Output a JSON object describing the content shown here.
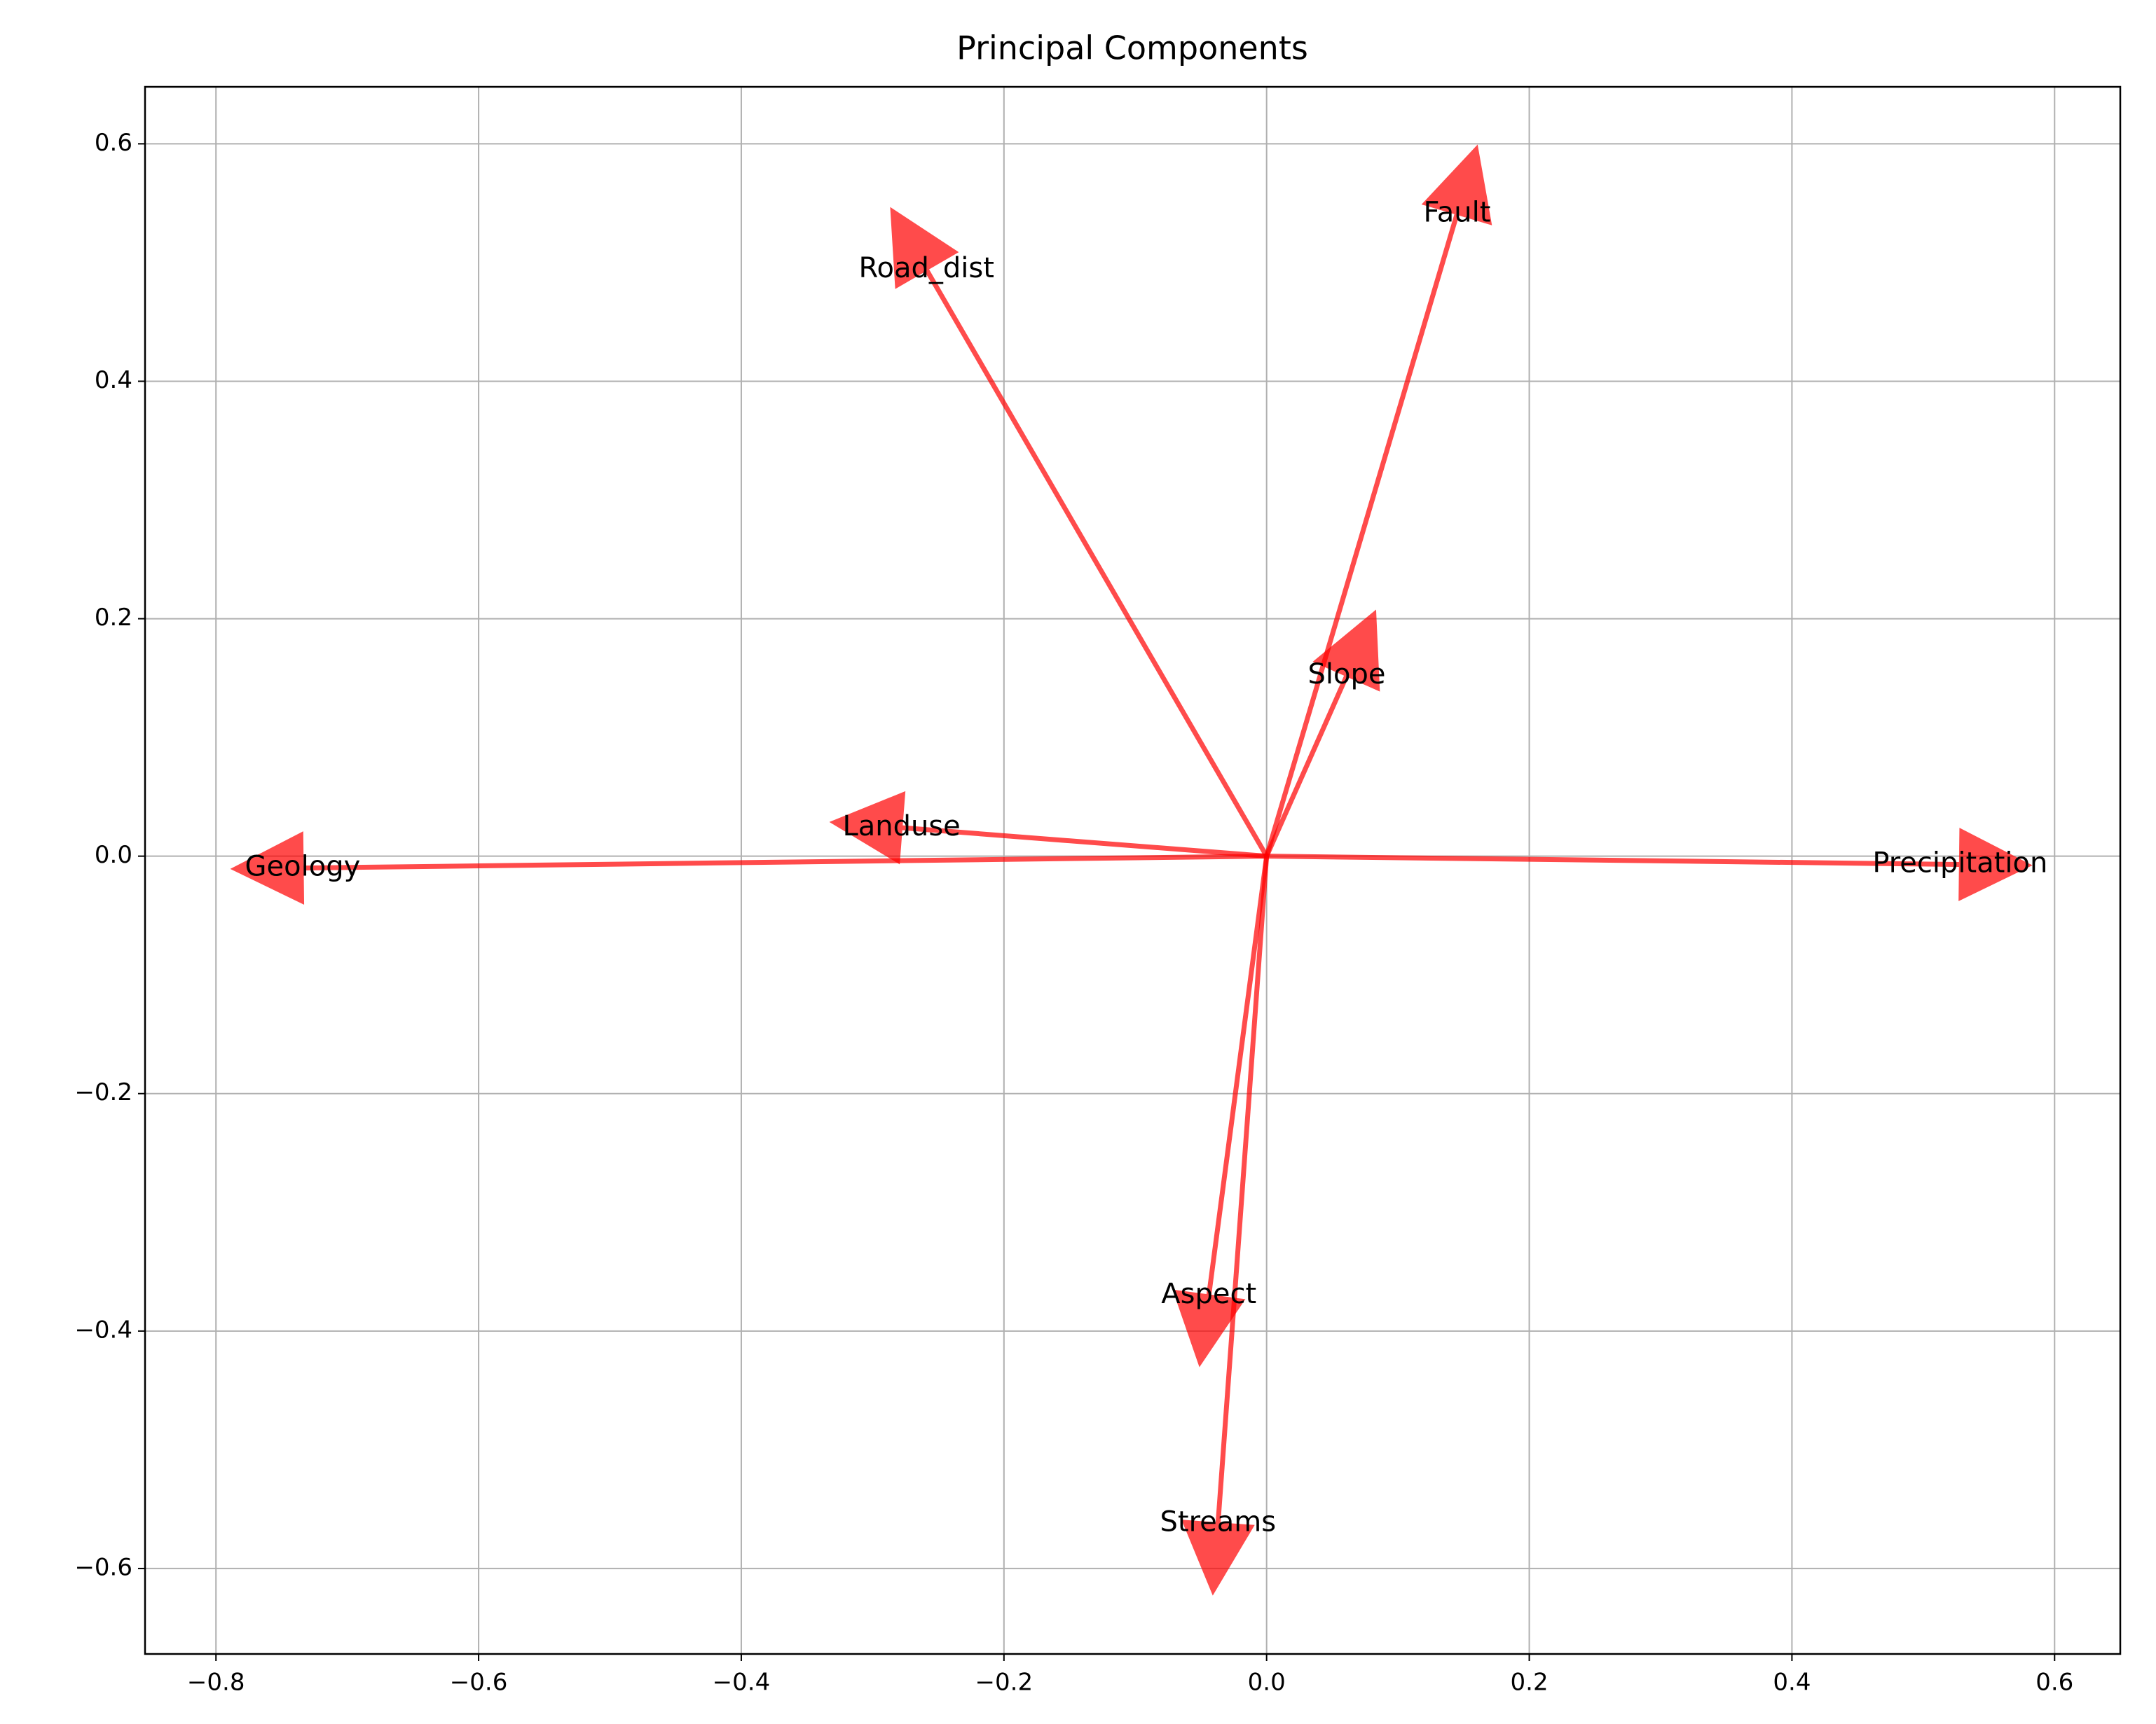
{
  "chart_data": {
    "type": "biplot",
    "title": "Principal Components",
    "xlim": [
      -0.854,
      0.65
    ],
    "ylim": [
      -0.672,
      0.648
    ],
    "xticks": [
      {
        "value": -0.8,
        "label": "−0.8"
      },
      {
        "value": -0.6,
        "label": "−0.6"
      },
      {
        "value": -0.4,
        "label": "−0.4"
      },
      {
        "value": -0.2,
        "label": "−0.2"
      },
      {
        "value": 0,
        "label": "0.0"
      },
      0.2,
      0.4,
      0.6
    ],
    "yticks": [
      {
        "value": -0.6,
        "label": "−0.6"
      },
      {
        "value": -0.4,
        "label": "−0.4"
      },
      {
        "value": -0.2,
        "label": "−0.2"
      },
      {
        "value": 0,
        "label": "0.0"
      },
      0.2,
      0.4,
      0.6
    ],
    "grid": true,
    "color": "#ff0000",
    "alpha": 0.7,
    "vectors": [
      {
        "name": "Road_dist",
        "x": -0.259,
        "y": 0.494
      },
      {
        "name": "Fault",
        "x": 0.145,
        "y": 0.541
      },
      {
        "name": "Slope",
        "x": 0.061,
        "y": 0.152
      },
      {
        "name": "Landuse",
        "x": -0.278,
        "y": 0.024
      },
      {
        "name": "Geology",
        "x": -0.734,
        "y": -0.01
      },
      {
        "name": "Precipitation",
        "x": 0.528,
        "y": -0.007
      },
      {
        "name": "Aspect",
        "x": -0.044,
        "y": -0.37
      },
      {
        "name": "Streams",
        "x": -0.037,
        "y": -0.562
      }
    ]
  }
}
